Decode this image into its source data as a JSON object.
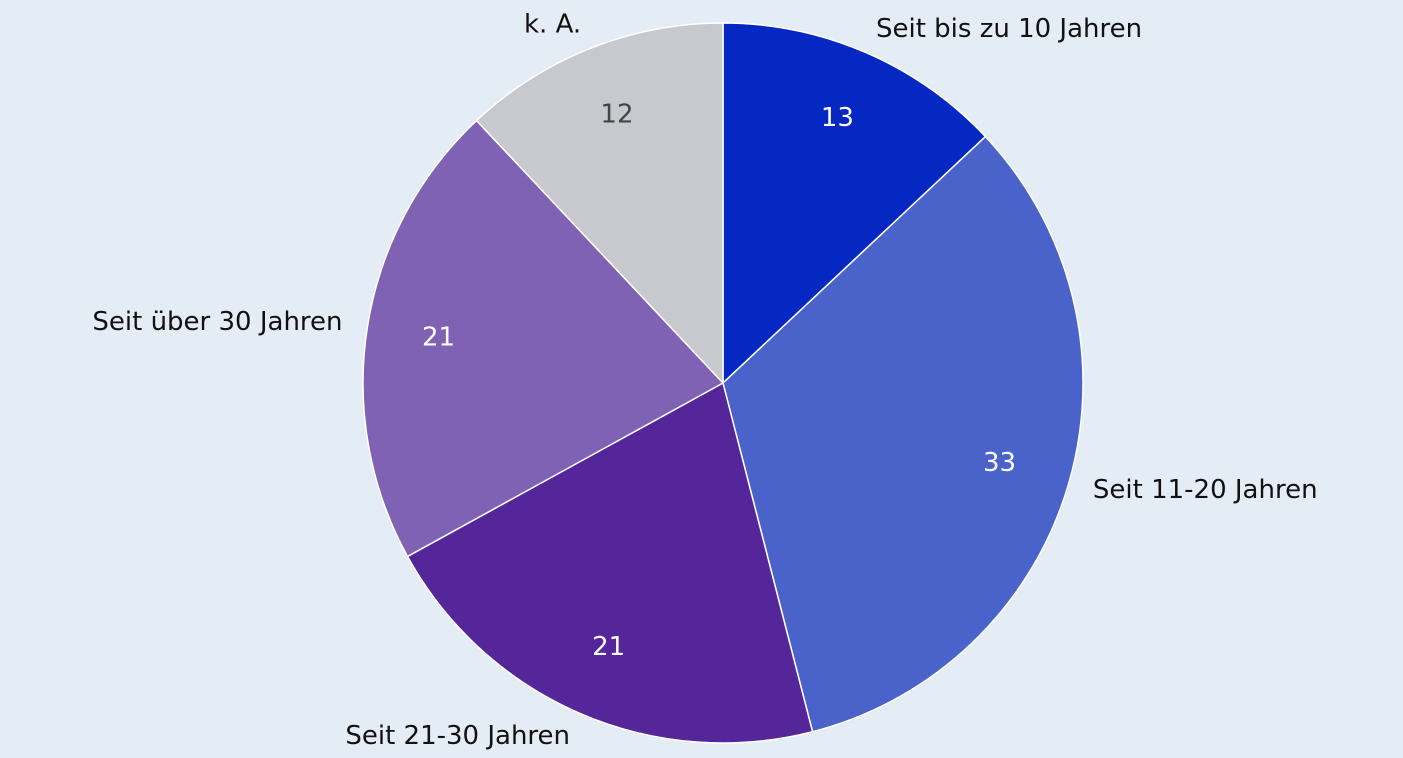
{
  "chart_data": {
    "type": "pie",
    "categories": [
      "Seit bis zu 10 Jahren",
      "Seit 11-20 Jahren",
      "Seit 21-30 Jahren",
      "Seit über 30 Jahren",
      "k. A."
    ],
    "values": [
      13,
      33,
      21,
      21,
      12
    ],
    "colors": [
      "#0527c2",
      "#4a63cb",
      "#55259a",
      "#8062b5",
      "#c8c9ce"
    ],
    "value_label_colors": [
      "#ffffff",
      "#ffffff",
      "#ffffff",
      "#ffffff",
      "#444444"
    ]
  }
}
